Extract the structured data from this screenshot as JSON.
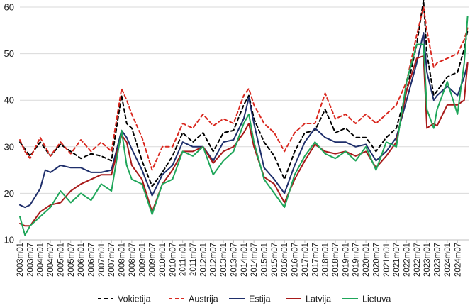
{
  "chart_data": {
    "type": "line",
    "title": "",
    "xlabel": "",
    "ylabel": "",
    "ylim": [
      10,
      60
    ],
    "yticks": [
      10,
      20,
      30,
      40,
      50,
      60
    ],
    "grid": true,
    "legend_position": "bottom",
    "x_start": "2003m01",
    "x_frequency": "monthly",
    "x_tick_labels": [
      "2003m01",
      "2003m07",
      "2004m01",
      "2004m07",
      "2005m01",
      "2005m07",
      "2006m01",
      "2006m07",
      "2007m01",
      "2007m07",
      "2008m01",
      "2008m07",
      "2009m01",
      "2009m07",
      "2010m01",
      "2010m07",
      "2011m01",
      "2011m07",
      "2012m01",
      "2012m07",
      "2013m01",
      "2013m07",
      "2014m01",
      "2014m07",
      "2015m01",
      "2015m07",
      "2016m01",
      "2016m07",
      "2017m01",
      "2017m07",
      "2018m01",
      "2018m07",
      "2019m01",
      "2019m07",
      "2020m01",
      "2020m07",
      "2021m01",
      "2021m07",
      "2022m01",
      "2022m07",
      "2023m01",
      "2023m07",
      "2024m01",
      "2024m07"
    ],
    "series": [
      {
        "name": "Vokietija",
        "color": "#000000",
        "dash": "dashed",
        "points": [
          [
            "2003m01",
            31
          ],
          [
            "2003m04",
            29.5
          ],
          [
            "2003m07",
            28
          ],
          [
            "2004m01",
            31
          ],
          [
            "2004m07",
            28
          ],
          [
            "2005m01",
            30.5
          ],
          [
            "2005m07",
            29
          ],
          [
            "2006m01",
            27.5
          ],
          [
            "2006m07",
            28.5
          ],
          [
            "2007m01",
            28
          ],
          [
            "2007m07",
            27
          ],
          [
            "2008m01",
            41
          ],
          [
            "2008m04",
            35
          ],
          [
            "2008m07",
            34
          ],
          [
            "2009m01",
            27
          ],
          [
            "2009m07",
            21.5
          ],
          [
            "2010m01",
            24.5
          ],
          [
            "2010m07",
            28
          ],
          [
            "2011m01",
            33
          ],
          [
            "2011m07",
            31
          ],
          [
            "2012m01",
            33
          ],
          [
            "2012m07",
            29
          ],
          [
            "2013m01",
            33
          ],
          [
            "2013m07",
            33.5
          ],
          [
            "2014m01",
            39
          ],
          [
            "2014m04",
            41
          ],
          [
            "2014m07",
            36
          ],
          [
            "2015m01",
            31
          ],
          [
            "2015m07",
            28
          ],
          [
            "2016m01",
            23
          ],
          [
            "2016m07",
            29
          ],
          [
            "2017m01",
            33
          ],
          [
            "2017m07",
            33.5
          ],
          [
            "2018m01",
            38
          ],
          [
            "2018m07",
            33
          ],
          [
            "2019m01",
            34
          ],
          [
            "2019m07",
            32
          ],
          [
            "2020m01",
            32
          ],
          [
            "2020m07",
            29
          ],
          [
            "2021m01",
            32
          ],
          [
            "2021m07",
            34
          ],
          [
            "2022m01",
            42
          ],
          [
            "2022m07",
            52
          ],
          [
            "2022m11",
            61.5
          ],
          [
            "2023m01",
            50
          ],
          [
            "2023m05",
            41
          ],
          [
            "2023m07",
            42
          ],
          [
            "2024m01",
            45
          ],
          [
            "2024m07",
            46
          ],
          [
            "2024m11",
            51
          ],
          [
            "2025m01",
            55
          ]
        ]
      },
      {
        "name": "Austrija",
        "color": "#d9281f",
        "dash": "dashed",
        "points": [
          [
            "2003m01",
            31.5
          ],
          [
            "2003m04",
            29
          ],
          [
            "2003m07",
            27.5
          ],
          [
            "2004m01",
            32
          ],
          [
            "2004m07",
            28
          ],
          [
            "2005m01",
            31
          ],
          [
            "2005m07",
            28.5
          ],
          [
            "2006m01",
            31.5
          ],
          [
            "2006m07",
            29
          ],
          [
            "2007m01",
            31
          ],
          [
            "2007m07",
            29
          ],
          [
            "2008m01",
            42.5
          ],
          [
            "2008m04",
            40
          ],
          [
            "2008m07",
            37
          ],
          [
            "2009m01",
            32
          ],
          [
            "2009m07",
            25
          ],
          [
            "2010m01",
            30
          ],
          [
            "2010m07",
            30
          ],
          [
            "2011m01",
            35
          ],
          [
            "2011m07",
            34
          ],
          [
            "2012m01",
            37
          ],
          [
            "2012m07",
            34.5
          ],
          [
            "2013m01",
            36
          ],
          [
            "2013m07",
            35
          ],
          [
            "2014m01",
            41
          ],
          [
            "2014m04",
            42.5
          ],
          [
            "2014m07",
            39
          ],
          [
            "2015m01",
            35
          ],
          [
            "2015m07",
            33
          ],
          [
            "2016m01",
            29
          ],
          [
            "2016m07",
            33
          ],
          [
            "2017m01",
            35
          ],
          [
            "2017m07",
            35
          ],
          [
            "2018m01",
            41.5
          ],
          [
            "2018m07",
            36
          ],
          [
            "2019m01",
            37
          ],
          [
            "2019m07",
            35
          ],
          [
            "2020m01",
            37
          ],
          [
            "2020m07",
            35
          ],
          [
            "2021m01",
            37
          ],
          [
            "2021m07",
            39
          ],
          [
            "2022m01",
            44
          ],
          [
            "2022m07",
            54
          ],
          [
            "2022m11",
            60
          ],
          [
            "2023m01",
            55
          ],
          [
            "2023m05",
            47
          ],
          [
            "2023m07",
            48
          ],
          [
            "2024m01",
            49
          ],
          [
            "2024m07",
            50
          ],
          [
            "2024m11",
            53
          ],
          [
            "2025m01",
            55.5
          ]
        ]
      },
      {
        "name": "Estija",
        "color": "#1f2f6b",
        "dash": "solid",
        "points": [
          [
            "2003m01",
            17.5
          ],
          [
            "2003m04",
            17
          ],
          [
            "2003m07",
            17.5
          ],
          [
            "2004m01",
            21
          ],
          [
            "2004m04",
            25
          ],
          [
            "2004m07",
            24.5
          ],
          [
            "2005m01",
            26
          ],
          [
            "2005m07",
            25.5
          ],
          [
            "2006m01",
            25.5
          ],
          [
            "2006m07",
            24.5
          ],
          [
            "2007m01",
            24.5
          ],
          [
            "2007m07",
            25
          ],
          [
            "2008m01",
            33.5
          ],
          [
            "2008m04",
            32
          ],
          [
            "2008m07",
            29.5
          ],
          [
            "2009m01",
            25
          ],
          [
            "2009m07",
            19.5
          ],
          [
            "2010m01",
            24
          ],
          [
            "2010m07",
            26
          ],
          [
            "2011m01",
            31
          ],
          [
            "2011m07",
            30
          ],
          [
            "2012m01",
            30
          ],
          [
            "2012m07",
            27
          ],
          [
            "2013m01",
            31
          ],
          [
            "2013m07",
            31.5
          ],
          [
            "2014m01",
            36
          ],
          [
            "2014m04",
            40.5
          ],
          [
            "2014m07",
            35
          ],
          [
            "2015m01",
            25.5
          ],
          [
            "2015m07",
            23
          ],
          [
            "2016m01",
            20
          ],
          [
            "2016m07",
            26
          ],
          [
            "2017m01",
            31
          ],
          [
            "2017m07",
            34
          ],
          [
            "2018m01",
            32
          ],
          [
            "2018m07",
            31
          ],
          [
            "2019m01",
            31
          ],
          [
            "2019m07",
            30
          ],
          [
            "2020m01",
            30.5
          ],
          [
            "2020m07",
            27
          ],
          [
            "2021m01",
            29
          ],
          [
            "2021m07",
            32
          ],
          [
            "2022m01",
            40
          ],
          [
            "2022m07",
            48
          ],
          [
            "2022m11",
            54.5
          ],
          [
            "2023m01",
            46
          ],
          [
            "2023m05",
            40
          ],
          [
            "2023m07",
            41
          ],
          [
            "2024m01",
            43
          ],
          [
            "2024m07",
            41
          ],
          [
            "2024m11",
            45
          ],
          [
            "2025m01",
            48
          ]
        ]
      },
      {
        "name": "Latvija",
        "color": "#a81a1a",
        "dash": "solid",
        "points": [
          [
            "2003m01",
            13.5
          ],
          [
            "2003m04",
            13
          ],
          [
            "2003m07",
            13
          ],
          [
            "2004m01",
            16
          ],
          [
            "2004m07",
            17.5
          ],
          [
            "2005m01",
            18
          ],
          [
            "2005m07",
            20.5
          ],
          [
            "2006m01",
            22
          ],
          [
            "2006m07",
            23
          ],
          [
            "2007m01",
            24
          ],
          [
            "2007m07",
            24
          ],
          [
            "2008m01",
            32.5
          ],
          [
            "2008m04",
            31
          ],
          [
            "2008m07",
            26
          ],
          [
            "2009m01",
            23
          ],
          [
            "2009m07",
            16
          ],
          [
            "2010m01",
            22
          ],
          [
            "2010m07",
            25
          ],
          [
            "2011m01",
            29
          ],
          [
            "2011m07",
            29
          ],
          [
            "2012m01",
            30
          ],
          [
            "2012m07",
            26.5
          ],
          [
            "2013m01",
            29
          ],
          [
            "2013m07",
            30
          ],
          [
            "2014m01",
            33
          ],
          [
            "2014m04",
            35
          ],
          [
            "2014m07",
            30
          ],
          [
            "2015m01",
            23.5
          ],
          [
            "2015m07",
            22
          ],
          [
            "2016m01",
            18
          ],
          [
            "2016m07",
            23
          ],
          [
            "2017m01",
            27
          ],
          [
            "2017m07",
            30.5
          ],
          [
            "2018m01",
            29
          ],
          [
            "2018m07",
            28.5
          ],
          [
            "2019m01",
            29
          ],
          [
            "2019m07",
            28
          ],
          [
            "2020m01",
            29
          ],
          [
            "2020m07",
            25.5
          ],
          [
            "2021m01",
            28
          ],
          [
            "2021m07",
            31
          ],
          [
            "2022m01",
            42
          ],
          [
            "2022m07",
            49
          ],
          [
            "2022m11",
            49.5
          ],
          [
            "2023m01",
            34
          ],
          [
            "2023m05",
            35
          ],
          [
            "2023m07",
            34.5
          ],
          [
            "2024m01",
            39
          ],
          [
            "2024m07",
            39
          ],
          [
            "2024m11",
            40
          ],
          [
            "2025m01",
            48
          ]
        ]
      },
      {
        "name": "Lietuva",
        "color": "#1fa65a",
        "dash": "solid",
        "points": [
          [
            "2003m01",
            15
          ],
          [
            "2003m04",
            11
          ],
          [
            "2003m07",
            13
          ],
          [
            "2004m01",
            15
          ],
          [
            "2004m07",
            17
          ],
          [
            "2005m01",
            20.5
          ],
          [
            "2005m07",
            18
          ],
          [
            "2006m01",
            20
          ],
          [
            "2006m07",
            18.5
          ],
          [
            "2007m01",
            22
          ],
          [
            "2007m07",
            20.5
          ],
          [
            "2008m01",
            33.5
          ],
          [
            "2008m04",
            26
          ],
          [
            "2008m07",
            23
          ],
          [
            "2009m01",
            22
          ],
          [
            "2009m07",
            15.5
          ],
          [
            "2010m01",
            22
          ],
          [
            "2010m07",
            23
          ],
          [
            "2011m01",
            29
          ],
          [
            "2011m07",
            28
          ],
          [
            "2012m01",
            30
          ],
          [
            "2012m07",
            24
          ],
          [
            "2013m01",
            27
          ],
          [
            "2013m07",
            29
          ],
          [
            "2014m01",
            35
          ],
          [
            "2014m04",
            37
          ],
          [
            "2014m07",
            31
          ],
          [
            "2015m01",
            23
          ],
          [
            "2015m07",
            20
          ],
          [
            "2016m01",
            17
          ],
          [
            "2016m07",
            24
          ],
          [
            "2017m01",
            28
          ],
          [
            "2017m07",
            31
          ],
          [
            "2018m01",
            28.5
          ],
          [
            "2018m07",
            27.5
          ],
          [
            "2019m01",
            29
          ],
          [
            "2019m07",
            27
          ],
          [
            "2020m01",
            30
          ],
          [
            "2020m07",
            25
          ],
          [
            "2021m01",
            31
          ],
          [
            "2021m07",
            30
          ],
          [
            "2022m01",
            44
          ],
          [
            "2022m07",
            52
          ],
          [
            "2022m11",
            52
          ],
          [
            "2023m01",
            38
          ],
          [
            "2023m05",
            34
          ],
          [
            "2023m07",
            38
          ],
          [
            "2024m01",
            44
          ],
          [
            "2024m07",
            37
          ],
          [
            "2024m11",
            48
          ],
          [
            "2025m01",
            58
          ]
        ]
      }
    ]
  }
}
